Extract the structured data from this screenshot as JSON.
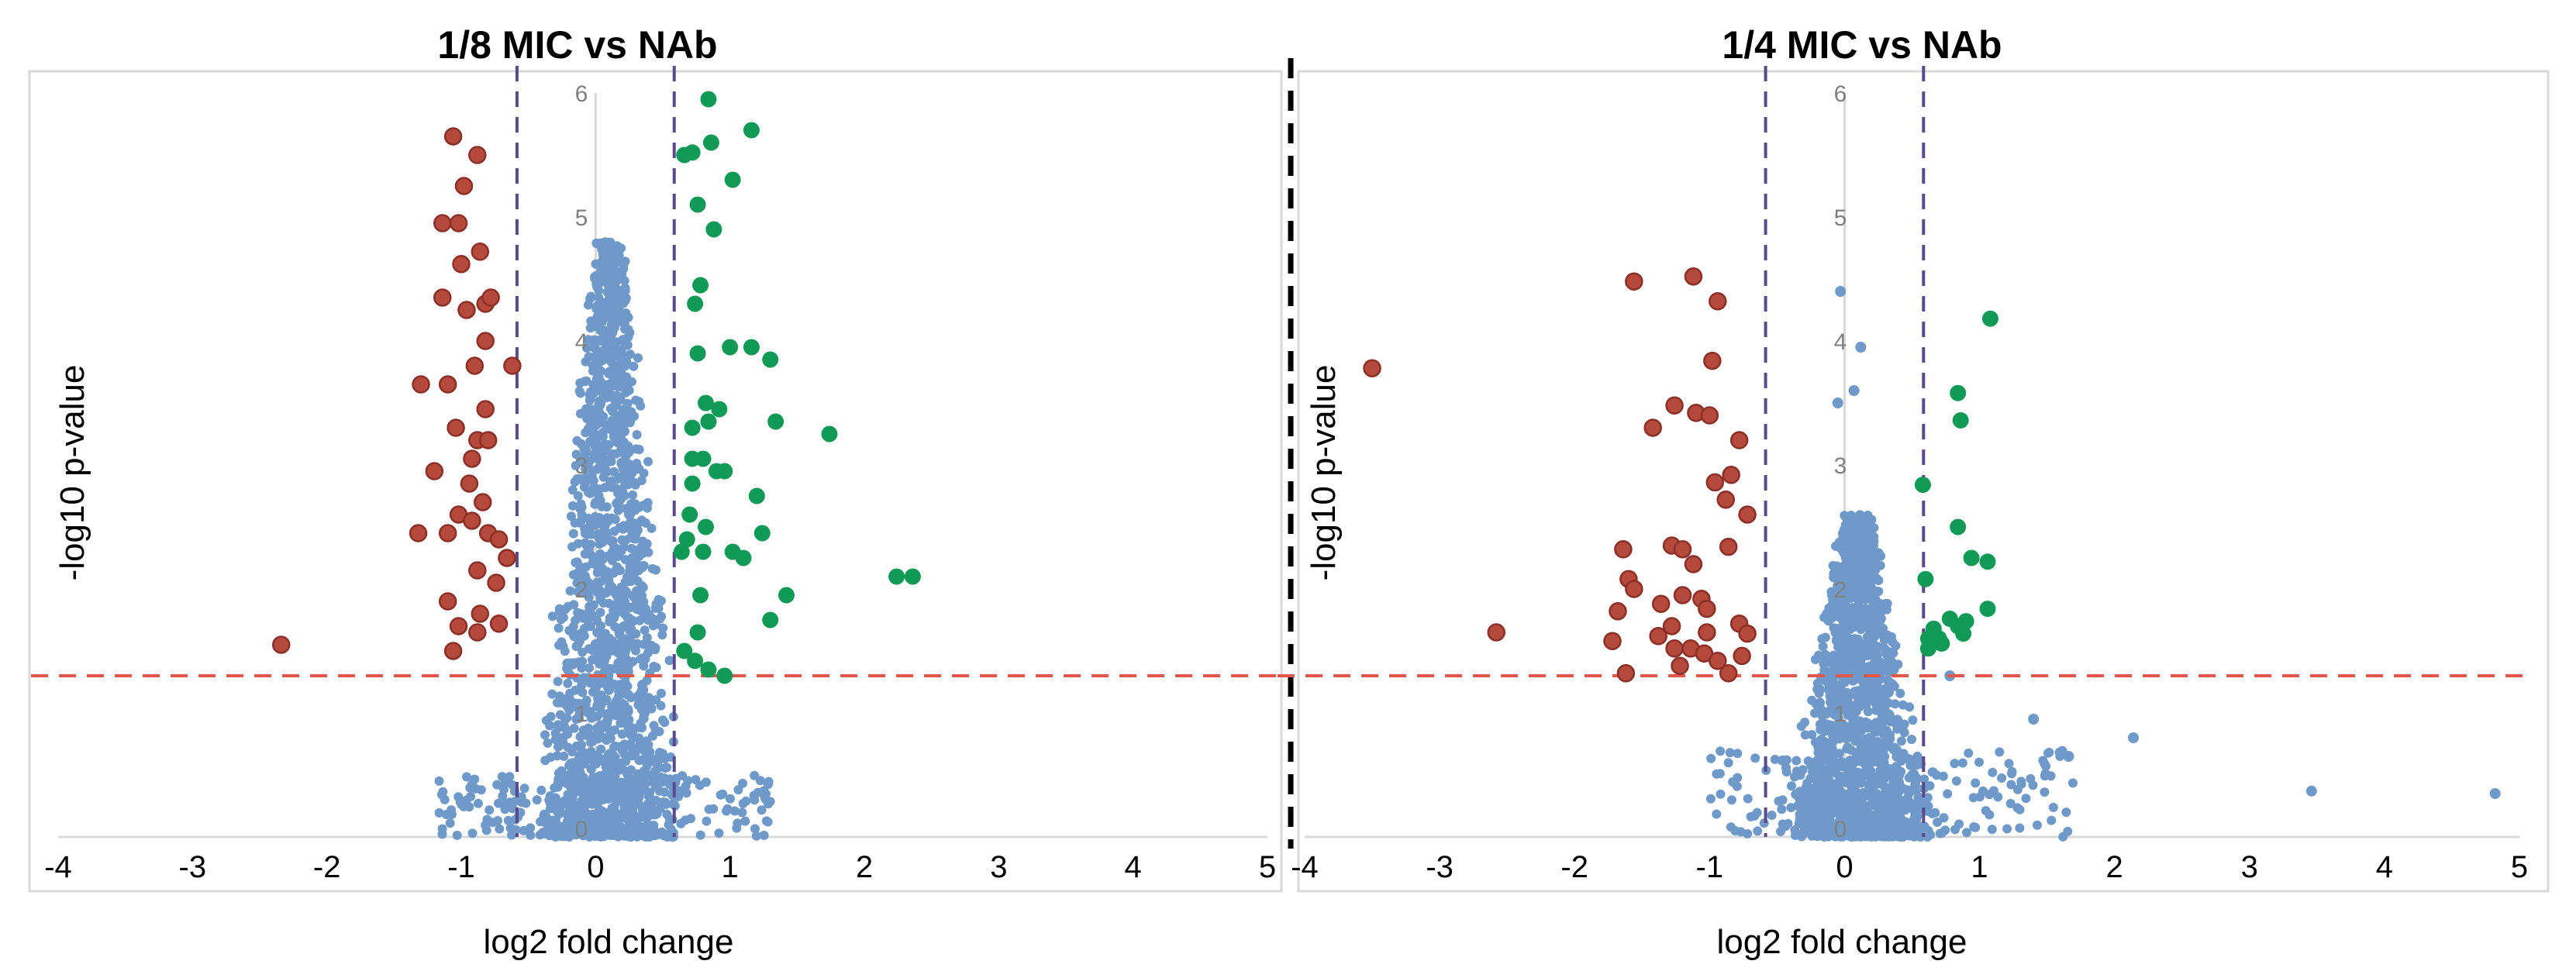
{
  "colors": {
    "normal": "#6f99c9",
    "down": "#b5493b",
    "down_edge": "#8c2f26",
    "up": "#119a55",
    "threshold_p": "#e1574a",
    "threshold_fc": "#5a4a8c",
    "divider": "#000000",
    "frame": "#d9d9d9",
    "zero_axis": "#d9d9d9"
  },
  "chart_data": [
    {
      "type": "scatter",
      "title": "1/8 MIC vs NAb",
      "xlabel": "log2 fold change",
      "ylabel": "-log10 p-value",
      "xlim": [
        -4,
        5
      ],
      "ylim": [
        0,
        6
      ],
      "xticks": [
        "-4",
        "-3",
        "-2",
        "-1",
        "0",
        "1",
        "2",
        "3",
        "4",
        "5"
      ],
      "yticks": [
        "0",
        "1",
        "2",
        "3",
        "4",
        "5",
        "6"
      ],
      "p_threshold": 1.3,
      "fc_thresholds": [
        -0.585,
        0.585
      ],
      "background_cloud": {
        "n": 1800,
        "seed": 11,
        "y_max": 4.8,
        "x_range": [
          -0.62,
          0.58
        ],
        "tail_x_range": [
          -1.2,
          1.3
        ],
        "tail_y_max": 0.5
      },
      "down": [
        [
          -1.06,
          5.65
        ],
        [
          -0.88,
          5.5
        ],
        [
          -0.98,
          5.25
        ],
        [
          -1.14,
          4.95
        ],
        [
          -1.02,
          4.95
        ],
        [
          -1.0,
          4.62
        ],
        [
          -0.86,
          4.72
        ],
        [
          -1.14,
          4.35
        ],
        [
          -0.96,
          4.25
        ],
        [
          -0.82,
          4.3
        ],
        [
          -0.78,
          4.35
        ],
        [
          -0.82,
          4.0
        ],
        [
          -0.9,
          3.8
        ],
        [
          -0.62,
          3.8
        ],
        [
          -1.3,
          3.65
        ],
        [
          -1.1,
          3.65
        ],
        [
          -0.82,
          3.45
        ],
        [
          -1.04,
          3.3
        ],
        [
          -0.88,
          3.2
        ],
        [
          -0.8,
          3.2
        ],
        [
          -0.92,
          3.05
        ],
        [
          -1.2,
          2.95
        ],
        [
          -0.94,
          2.85
        ],
        [
          -0.84,
          2.7
        ],
        [
          -1.02,
          2.6
        ],
        [
          -0.92,
          2.55
        ],
        [
          -1.1,
          2.45
        ],
        [
          -1.32,
          2.45
        ],
        [
          -0.8,
          2.45
        ],
        [
          -0.72,
          2.4
        ],
        [
          -0.66,
          2.25
        ],
        [
          -0.88,
          2.15
        ],
        [
          -0.74,
          2.05
        ],
        [
          -1.1,
          1.9
        ],
        [
          -0.86,
          1.8
        ],
        [
          -1.02,
          1.7
        ],
        [
          -0.72,
          1.72
        ],
        [
          -0.88,
          1.65
        ],
        [
          -1.06,
          1.5
        ],
        [
          -2.34,
          1.55
        ]
      ],
      "up": [
        [
          0.84,
          5.95
        ],
        [
          0.66,
          5.5
        ],
        [
          0.72,
          5.52
        ],
        [
          0.86,
          5.6
        ],
        [
          1.16,
          5.7
        ],
        [
          1.02,
          5.3
        ],
        [
          0.76,
          5.1
        ],
        [
          0.88,
          4.9
        ],
        [
          0.78,
          4.45
        ],
        [
          0.74,
          4.3
        ],
        [
          1.0,
          3.95
        ],
        [
          1.16,
          3.95
        ],
        [
          0.76,
          3.9
        ],
        [
          1.3,
          3.85
        ],
        [
          0.82,
          3.5
        ],
        [
          0.92,
          3.45
        ],
        [
          0.84,
          3.35
        ],
        [
          1.34,
          3.35
        ],
        [
          0.72,
          3.3
        ],
        [
          1.74,
          3.25
        ],
        [
          0.72,
          3.05
        ],
        [
          0.8,
          3.05
        ],
        [
          0.9,
          2.95
        ],
        [
          0.96,
          2.95
        ],
        [
          0.72,
          2.85
        ],
        [
          1.2,
          2.75
        ],
        [
          0.7,
          2.6
        ],
        [
          0.82,
          2.5
        ],
        [
          1.24,
          2.45
        ],
        [
          0.68,
          2.4
        ],
        [
          1.02,
          2.3
        ],
        [
          0.8,
          2.3
        ],
        [
          0.64,
          2.3
        ],
        [
          1.1,
          2.25
        ],
        [
          2.24,
          2.1
        ],
        [
          2.36,
          2.1
        ],
        [
          1.42,
          1.95
        ],
        [
          0.78,
          1.95
        ],
        [
          1.3,
          1.75
        ],
        [
          0.76,
          1.65
        ],
        [
          0.66,
          1.5
        ],
        [
          0.74,
          1.42
        ],
        [
          0.84,
          1.35
        ],
        [
          0.96,
          1.3
        ]
      ]
    },
    {
      "type": "scatter",
      "title": "1/4 MIC vs NAb",
      "xlabel": "log2 fold change",
      "ylabel": "-log10 p-value",
      "xlim": [
        -4,
        5
      ],
      "ylim": [
        0,
        6
      ],
      "xticks": [
        "-4",
        "-3",
        "-2",
        "-1",
        "0",
        "1",
        "2",
        "3",
        "4",
        "5"
      ],
      "yticks": [
        "0",
        "1",
        "2",
        "3",
        "4",
        "5",
        "6"
      ],
      "p_threshold": 1.3,
      "fc_thresholds": [
        -0.585,
        0.585
      ],
      "background_cloud": {
        "n": 1600,
        "seed": 23,
        "y_max": 2.6,
        "x_range": [
          -0.8,
          0.62
        ],
        "tail_x_range": [
          -1.0,
          1.7
        ],
        "tail_y_max": 0.7
      },
      "extra_normal": [
        [
          -0.03,
          4.4
        ],
        [
          0.12,
          3.95
        ],
        [
          0.07,
          3.6
        ],
        [
          -0.05,
          3.5
        ],
        [
          0.78,
          1.3
        ],
        [
          1.4,
          0.95
        ],
        [
          1.66,
          0.65
        ],
        [
          2.14,
          0.8
        ],
        [
          3.46,
          0.37
        ],
        [
          4.82,
          0.35
        ]
      ],
      "down": [
        [
          -1.12,
          4.52
        ],
        [
          -1.56,
          4.48
        ],
        [
          -0.94,
          4.32
        ],
        [
          -0.98,
          3.84
        ],
        [
          -3.5,
          3.78
        ],
        [
          -1.26,
          3.48
        ],
        [
          -1.1,
          3.42
        ],
        [
          -1.0,
          3.4
        ],
        [
          -1.42,
          3.3
        ],
        [
          -0.78,
          3.2
        ],
        [
          -0.84,
          2.92
        ],
        [
          -0.96,
          2.86
        ],
        [
          -0.88,
          2.72
        ],
        [
          -0.72,
          2.6
        ],
        [
          -1.64,
          2.32
        ],
        [
          -1.28,
          2.35
        ],
        [
          -1.2,
          2.32
        ],
        [
          -0.86,
          2.34
        ],
        [
          -1.12,
          2.2
        ],
        [
          -1.6,
          2.08
        ],
        [
          -1.56,
          2.0
        ],
        [
          -1.2,
          1.95
        ],
        [
          -1.06,
          1.92
        ],
        [
          -1.36,
          1.88
        ],
        [
          -1.02,
          1.84
        ],
        [
          -1.68,
          1.82
        ],
        [
          -1.28,
          1.7
        ],
        [
          -0.78,
          1.72
        ],
        [
          -1.02,
          1.65
        ],
        [
          -0.72,
          1.64
        ],
        [
          -1.38,
          1.62
        ],
        [
          -1.72,
          1.58
        ],
        [
          -1.14,
          1.52
        ],
        [
          -2.58,
          1.65
        ],
        [
          -1.26,
          1.52
        ],
        [
          -1.04,
          1.48
        ],
        [
          -0.94,
          1.42
        ],
        [
          -0.76,
          1.46
        ],
        [
          -1.22,
          1.38
        ],
        [
          -0.86,
          1.32
        ],
        [
          -1.62,
          1.32
        ]
      ],
      "up": [
        [
          1.08,
          4.18
        ],
        [
          0.84,
          3.58
        ],
        [
          0.86,
          3.36
        ],
        [
          0.58,
          2.84
        ],
        [
          0.84,
          2.5
        ],
        [
          0.94,
          2.25
        ],
        [
          1.06,
          2.22
        ],
        [
          0.6,
          2.08
        ],
        [
          1.06,
          1.84
        ],
        [
          0.78,
          1.76
        ],
        [
          0.9,
          1.74
        ],
        [
          0.84,
          1.7
        ],
        [
          0.88,
          1.64
        ],
        [
          0.66,
          1.68
        ],
        [
          0.7,
          1.6
        ],
        [
          0.62,
          1.6
        ],
        [
          0.62,
          1.52
        ],
        [
          0.72,
          1.56
        ]
      ]
    }
  ]
}
